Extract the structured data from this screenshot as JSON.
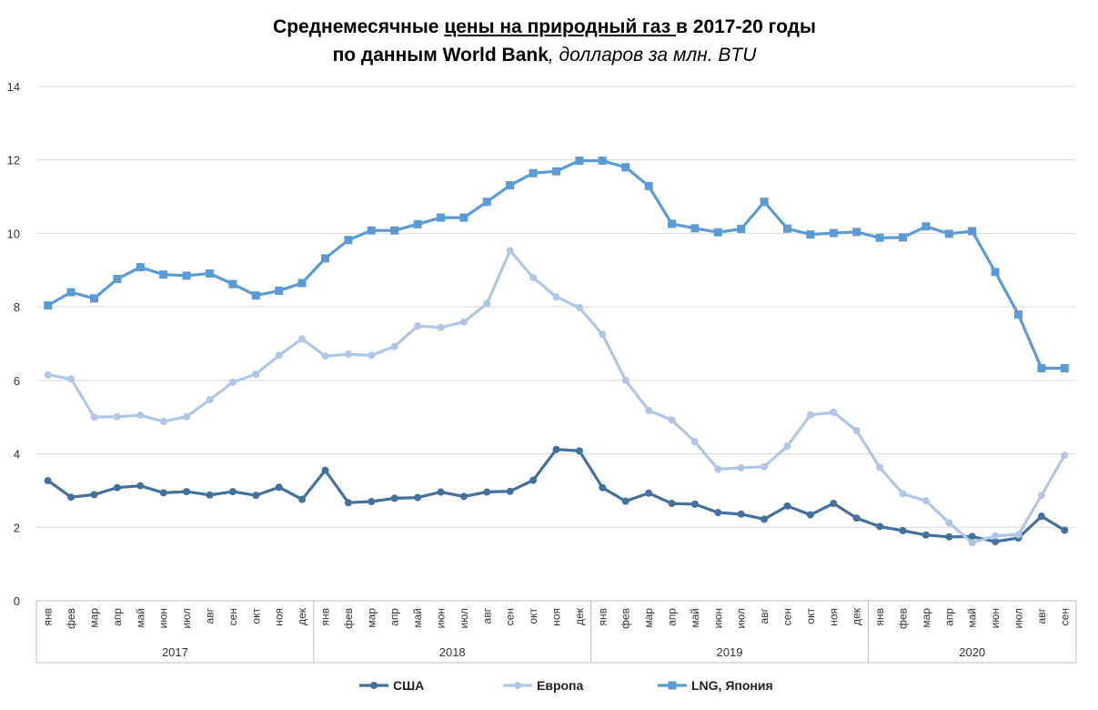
{
  "title": {
    "line1_part1": "Среднемесячные ",
    "line1_part2": "цены на природный газ ",
    "line1_part3": "в 2017-20 годы",
    "line2_bold": "по данным World Bank",
    "line2_italic": ", долларов за млн. BTU"
  },
  "chart_data": {
    "type": "line",
    "title": "Среднемесячные цены на природный газ в 2017-20 годы по данным World Bank, долларов за млн. BTU",
    "ylim": [
      0,
      14
    ],
    "yticks": [
      0,
      2,
      4,
      6,
      8,
      10,
      12,
      14
    ],
    "grid": true,
    "legend_position": "bottom",
    "x_months": [
      "янв",
      "фев",
      "мар",
      "апр",
      "май",
      "июн",
      "июл",
      "авг",
      "сен",
      "окт",
      "ноя",
      "дек",
      "янв",
      "фев",
      "мар",
      "апр",
      "май",
      "июн",
      "июл",
      "авг",
      "сен",
      "окт",
      "ноя",
      "дек",
      "янв",
      "фев",
      "мар",
      "апр",
      "май",
      "июн",
      "июл",
      "авг",
      "сен",
      "окт",
      "ноя",
      "дек",
      "янв",
      "фев",
      "мар",
      "апр",
      "май",
      "июн",
      "июл",
      "авг",
      "сен"
    ],
    "x_years": [
      {
        "label": "2017",
        "start": 0,
        "count": 12
      },
      {
        "label": "2018",
        "start": 12,
        "count": 12
      },
      {
        "label": "2019",
        "start": 24,
        "count": 12
      },
      {
        "label": "2020",
        "start": 36,
        "count": 9
      }
    ],
    "series": [
      {
        "name": "США",
        "color": "#41719C",
        "marker": "circle",
        "values": [
          3.27,
          2.82,
          2.89,
          3.08,
          3.13,
          2.94,
          2.97,
          2.88,
          2.97,
          2.87,
          3.09,
          2.76,
          3.55,
          2.67,
          2.7,
          2.79,
          2.81,
          2.96,
          2.84,
          2.96,
          2.98,
          3.28,
          4.12,
          4.08,
          3.08,
          2.71,
          2.93,
          2.65,
          2.63,
          2.4,
          2.36,
          2.22,
          2.58,
          2.34,
          2.65,
          2.25,
          2.02,
          1.91,
          1.79,
          1.74,
          1.75,
          1.61,
          1.71,
          2.3,
          1.92
        ]
      },
      {
        "name": "Европа",
        "color": "#AFC6E6",
        "marker": "circle",
        "values": [
          6.15,
          6.04,
          5.0,
          5.01,
          5.05,
          4.88,
          5.01,
          5.47,
          5.95,
          6.17,
          6.68,
          7.13,
          6.66,
          6.71,
          6.68,
          6.92,
          7.48,
          7.44,
          7.59,
          8.09,
          9.53,
          8.8,
          8.27,
          7.98,
          7.25,
          6.0,
          5.18,
          4.92,
          4.33,
          3.58,
          3.62,
          3.65,
          4.21,
          5.06,
          5.13,
          4.63,
          3.63,
          2.91,
          2.72,
          2.12,
          1.58,
          1.77,
          1.8,
          2.87,
          3.96
        ]
      },
      {
        "name": "LNG, Япония",
        "color": "#5B9BD5",
        "marker": "square",
        "values": [
          8.04,
          8.4,
          8.23,
          8.76,
          9.08,
          8.88,
          8.85,
          8.91,
          8.62,
          8.31,
          8.44,
          8.65,
          9.32,
          9.82,
          10.08,
          10.08,
          10.25,
          10.43,
          10.43,
          10.86,
          11.31,
          11.64,
          11.69,
          11.98,
          11.98,
          11.8,
          11.29,
          10.26,
          10.14,
          10.03,
          10.12,
          10.86,
          10.13,
          9.97,
          10.01,
          10.04,
          9.88,
          9.89,
          10.19,
          9.99,
          10.06,
          8.95,
          7.79,
          6.33,
          6.33
        ]
      }
    ]
  }
}
